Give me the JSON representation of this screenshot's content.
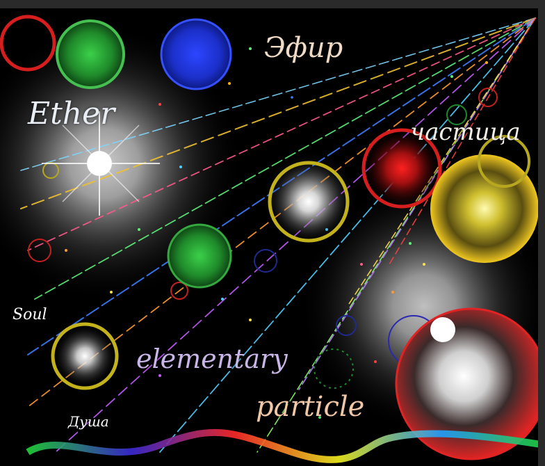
{
  "words": {
    "ether": "Ether",
    "efir": "Эфир",
    "chastitsa": "частица",
    "soul": "Soul",
    "elementary": "elementary",
    "particle": "particle",
    "dusha": "Душа"
  },
  "colors": {
    "background": "#000000",
    "frame": "#2a2a2a",
    "green_orb": "#2fa83a",
    "blue_orb": "#1e3fd8",
    "red_ring": "#d61e1e",
    "yellow_orb": "#e6d21e",
    "white_glow": "#ffffff"
  }
}
